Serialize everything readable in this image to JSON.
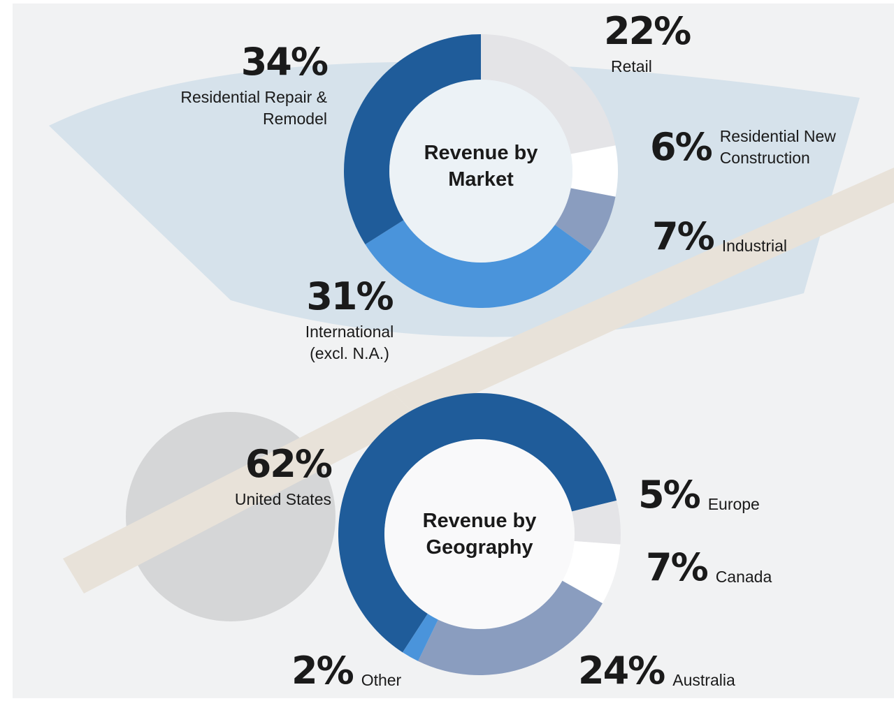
{
  "chart_data": [
    {
      "type": "pie",
      "title": "Revenue by Market",
      "categories": [
        "Retail",
        "Residential New Construction",
        "Industrial",
        "International (excl. N.A.)",
        "Residential Repair & Remodel"
      ],
      "values": [
        22,
        6,
        7,
        31,
        34
      ],
      "value_labels": [
        "22%",
        "6%",
        "7%",
        "31%",
        "34%"
      ],
      "colors": [
        "#e4e4e7",
        "#ffffff",
        "#8a9dbf",
        "#4a94db",
        "#1f5c9a"
      ]
    },
    {
      "type": "pie",
      "title": "Revenue by Geography",
      "categories": [
        "United States",
        "Europe",
        "Canada",
        "Australia",
        "Other"
      ],
      "values": [
        62,
        5,
        7,
        24,
        2
      ],
      "value_labels": [
        "62%",
        "5%",
        "7%",
        "24%",
        "2%"
      ],
      "colors": [
        "#1f5c9a",
        "#e4e4e7",
        "#ffffff",
        "#8a9dbf",
        "#4a94db"
      ]
    }
  ]
}
